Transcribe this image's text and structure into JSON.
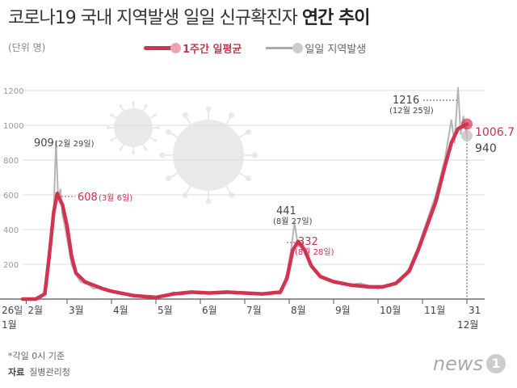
{
  "header": {
    "title_normal": "코로나19 국내 지역발생 일일 신규확진자",
    "title_bold": "연간 추이",
    "unit": "(단위 명)"
  },
  "legend": {
    "avg_label": "1주간 일평균",
    "daily_label": "일일 지역발생"
  },
  "footer": {
    "note": "*각일 0시 기준",
    "source_label": "자료",
    "source": "질병관리청",
    "logo_word": "news",
    "logo_mark": "1"
  },
  "colors": {
    "avg": "#d2334f",
    "daily": "#b4b4b4",
    "grid": "#dddddd"
  },
  "icons": [
    "virus-illustration"
  ],
  "chart_data": {
    "type": "line",
    "ylim": [
      0,
      1200
    ],
    "yticks": [
      200,
      400,
      600,
      800,
      1000,
      1200
    ],
    "grid": true,
    "legend_position": "top",
    "x_ticks": [
      {
        "label": "2월",
        "pos": 0.08
      },
      {
        "label": "3월",
        "pos": 1.0
      },
      {
        "label": "4월",
        "pos": 2.0
      },
      {
        "label": "5월",
        "pos": 3.0
      },
      {
        "label": "6월",
        "pos": 4.0
      },
      {
        "label": "7월",
        "pos": 5.0
      },
      {
        "label": "8월",
        "pos": 6.0
      },
      {
        "label": "9월",
        "pos": 7.0
      },
      {
        "label": "10월",
        "pos": 8.0
      },
      {
        "label": "11월",
        "pos": 9.0
      },
      {
        "label": "31",
        "pos": 10.0
      }
    ],
    "x_start_label": "26일",
    "x_start_sub": "1월",
    "x_end_sub": "12월",
    "series": [
      {
        "name": "일일 지역발생",
        "points": [
          [
            0.0,
            0
          ],
          [
            0.25,
            0
          ],
          [
            0.45,
            20
          ],
          [
            0.55,
            120
          ],
          [
            0.62,
            300
          ],
          [
            0.7,
            500
          ],
          [
            0.75,
            909
          ],
          [
            0.8,
            580
          ],
          [
            0.85,
            630
          ],
          [
            0.9,
            480
          ],
          [
            0.95,
            420
          ],
          [
            1.0,
            350
          ],
          [
            1.1,
            200
          ],
          [
            1.2,
            140
          ],
          [
            1.3,
            100
          ],
          [
            1.4,
            90
          ],
          [
            1.5,
            80
          ],
          [
            1.6,
            60
          ],
          [
            1.75,
            70
          ],
          [
            1.9,
            50
          ],
          [
            2.0,
            40
          ],
          [
            2.2,
            30
          ],
          [
            2.5,
            15
          ],
          [
            2.8,
            10
          ],
          [
            3.0,
            8
          ],
          [
            3.2,
            20
          ],
          [
            3.4,
            40
          ],
          [
            3.6,
            25
          ],
          [
            3.8,
            45
          ],
          [
            4.0,
            30
          ],
          [
            4.3,
            40
          ],
          [
            4.6,
            45
          ],
          [
            4.8,
            30
          ],
          [
            5.0,
            35
          ],
          [
            5.3,
            25
          ],
          [
            5.6,
            35
          ],
          [
            5.8,
            30
          ],
          [
            5.95,
            150
          ],
          [
            6.05,
            300
          ],
          [
            6.12,
            441
          ],
          [
            6.2,
            300
          ],
          [
            6.3,
            330
          ],
          [
            6.45,
            200
          ],
          [
            6.6,
            150
          ],
          [
            6.8,
            120
          ],
          [
            7.0,
            100
          ],
          [
            7.3,
            80
          ],
          [
            7.6,
            90
          ],
          [
            7.9,
            70
          ],
          [
            8.0,
            60
          ],
          [
            8.2,
            80
          ],
          [
            8.5,
            100
          ],
          [
            8.7,
            180
          ],
          [
            8.9,
            300
          ],
          [
            9.1,
            450
          ],
          [
            9.3,
            600
          ],
          [
            9.5,
            800
          ],
          [
            9.65,
            1030
          ],
          [
            9.72,
            900
          ],
          [
            9.8,
            1216
          ],
          [
            9.86,
            950
          ],
          [
            9.92,
            1050
          ],
          [
            10.0,
            940
          ]
        ]
      },
      {
        "name": "1주간 일평균",
        "points": [
          [
            0.0,
            0
          ],
          [
            0.3,
            0
          ],
          [
            0.5,
            30
          ],
          [
            0.6,
            250
          ],
          [
            0.7,
            500
          ],
          [
            0.78,
            608
          ],
          [
            0.9,
            540
          ],
          [
            1.0,
            420
          ],
          [
            1.1,
            250
          ],
          [
            1.2,
            150
          ],
          [
            1.4,
            100
          ],
          [
            1.6,
            80
          ],
          [
            1.8,
            60
          ],
          [
            2.0,
            45
          ],
          [
            2.5,
            20
          ],
          [
            3.0,
            10
          ],
          [
            3.4,
            30
          ],
          [
            3.8,
            40
          ],
          [
            4.2,
            35
          ],
          [
            4.6,
            40
          ],
          [
            5.0,
            35
          ],
          [
            5.4,
            30
          ],
          [
            5.8,
            40
          ],
          [
            5.95,
            120
          ],
          [
            6.08,
            280
          ],
          [
            6.2,
            332
          ],
          [
            6.35,
            280
          ],
          [
            6.5,
            190
          ],
          [
            6.7,
            130
          ],
          [
            7.0,
            100
          ],
          [
            7.4,
            80
          ],
          [
            7.8,
            70
          ],
          [
            8.1,
            70
          ],
          [
            8.4,
            90
          ],
          [
            8.7,
            160
          ],
          [
            8.9,
            280
          ],
          [
            9.1,
            420
          ],
          [
            9.3,
            560
          ],
          [
            9.5,
            760
          ],
          [
            9.65,
            900
          ],
          [
            9.8,
            980
          ],
          [
            10.0,
            1006.7
          ]
        ]
      }
    ],
    "annotations": [
      {
        "series": 0,
        "value": "909",
        "date": "(2월 29일)"
      },
      {
        "series": 1,
        "value": "608",
        "date": "(3월 6일)"
      },
      {
        "series": 0,
        "value": "441",
        "date": "(8월 27일)"
      },
      {
        "series": 1,
        "value": "332",
        "date": "(8월 28일)"
      },
      {
        "series": 0,
        "value": "1216",
        "date": "(12월 25일)"
      },
      {
        "series": 1,
        "value": "1006.7",
        "date": ""
      },
      {
        "series": 0,
        "value": "940",
        "date": ""
      }
    ]
  }
}
